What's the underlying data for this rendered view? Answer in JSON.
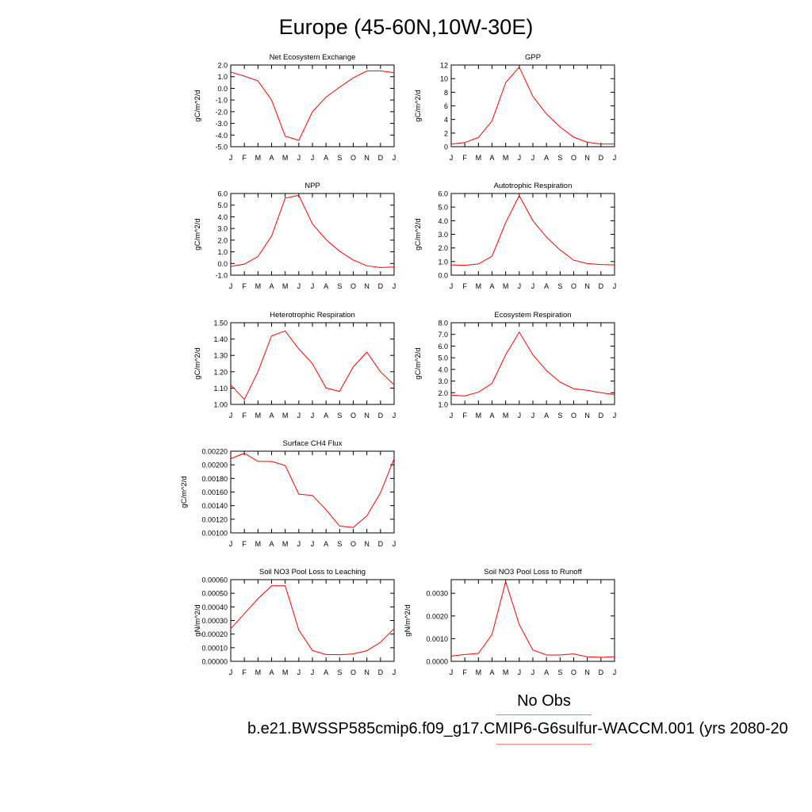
{
  "title": "Europe (45-60N,10W-30E)",
  "legend": {
    "obs_label": "No Obs",
    "case_label": "b.e21.BWSSP585cmip6.f09_g17.CMIP6-G6sulfur-WACCM.001 (yrs 2080-20",
    "obs_color": "#8c8cff",
    "case_color": "#ff0000"
  },
  "chart_data": [
    {
      "type": "line",
      "title": "Net Ecosystem Exchange",
      "ylabel": "gC/m^2/d",
      "categories": [
        "J",
        "F",
        "M",
        "A",
        "M",
        "J",
        "J",
        "A",
        "S",
        "O",
        "N",
        "D",
        "J"
      ],
      "values": [
        1.4,
        1.05,
        0.65,
        -1.0,
        -4.1,
        -4.45,
        -2.0,
        -0.75,
        0.1,
        0.9,
        1.5,
        1.5,
        1.35
      ],
      "ylim": [
        -5.0,
        2.0
      ],
      "yticks": [
        "2.0",
        "1.0",
        "0.0",
        "-1.0",
        "-2.0",
        "-3.0",
        "-4.0",
        "-5.0"
      ],
      "color": "#ff0000"
    },
    {
      "type": "line",
      "title": "GPP",
      "ylabel": "gC/m^2/d",
      "categories": [
        "J",
        "F",
        "M",
        "A",
        "M",
        "J",
        "J",
        "A",
        "S",
        "O",
        "N",
        "D",
        "J"
      ],
      "values": [
        0.4,
        0.6,
        1.35,
        3.8,
        9.4,
        11.7,
        7.4,
        4.8,
        2.9,
        1.4,
        0.65,
        0.4,
        0.4
      ],
      "ylim": [
        0,
        12
      ],
      "yticks": [
        "12",
        "10",
        "8",
        "6",
        "4",
        "2",
        "0"
      ],
      "color": "#ff0000"
    },
    {
      "type": "line",
      "title": "NPP",
      "ylabel": "gC/m^2/d",
      "categories": [
        "J",
        "F",
        "M",
        "A",
        "M",
        "J",
        "J",
        "A",
        "S",
        "O",
        "N",
        "D",
        "J"
      ],
      "values": [
        -0.25,
        -0.05,
        0.6,
        2.35,
        5.6,
        5.85,
        3.4,
        2.05,
        1.05,
        0.3,
        -0.2,
        -0.35,
        -0.3
      ],
      "ylim": [
        -1.0,
        6.0
      ],
      "yticks": [
        "6.0",
        "5.0",
        "4.0",
        "3.0",
        "2.0",
        "1.0",
        "0.0",
        "-1.0"
      ],
      "color": "#ff0000"
    },
    {
      "type": "line",
      "title": "Autotrophic Respiration",
      "ylabel": "gC/m^2/d",
      "categories": [
        "J",
        "F",
        "M",
        "A",
        "M",
        "J",
        "J",
        "A",
        "S",
        "O",
        "N",
        "D",
        "J"
      ],
      "values": [
        0.75,
        0.72,
        0.82,
        1.4,
        3.85,
        5.85,
        4.0,
        2.8,
        1.85,
        1.1,
        0.85,
        0.78,
        0.75
      ],
      "ylim": [
        0.0,
        6.0
      ],
      "yticks": [
        "6.0",
        "5.0",
        "4.0",
        "3.0",
        "2.0",
        "1.0",
        "0.0"
      ],
      "color": "#ff0000"
    },
    {
      "type": "line",
      "title": "Heterotrophic Respiration",
      "ylabel": "gC/m^2/d",
      "categories": [
        "J",
        "F",
        "M",
        "A",
        "M",
        "J",
        "J",
        "A",
        "S",
        "O",
        "N",
        "D",
        "J"
      ],
      "values": [
        1.12,
        1.03,
        1.2,
        1.42,
        1.45,
        1.34,
        1.25,
        1.1,
        1.08,
        1.23,
        1.32,
        1.2,
        1.12
      ],
      "ylim": [
        1.0,
        1.5
      ],
      "yticks": [
        "1.50",
        "1.40",
        "1.30",
        "1.20",
        "1.10",
        "1.00"
      ],
      "color": "#ff0000"
    },
    {
      "type": "line",
      "title": "Ecosystem Respiration",
      "ylabel": "gC/m^2/d",
      "categories": [
        "J",
        "F",
        "M",
        "A",
        "M",
        "J",
        "J",
        "A",
        "S",
        "O",
        "N",
        "D",
        "J"
      ],
      "values": [
        1.8,
        1.72,
        2.05,
        2.8,
        5.25,
        7.2,
        5.25,
        3.9,
        2.9,
        2.35,
        2.2,
        2.0,
        1.85
      ],
      "ylim": [
        1.0,
        8.0
      ],
      "yticks": [
        "8.0",
        "7.0",
        "6.0",
        "5.0",
        "4.0",
        "3.0",
        "2.0",
        "1.0"
      ],
      "color": "#ff0000"
    },
    {
      "type": "line",
      "title": "Surface CH4 Flux",
      "ylabel": "gC/m^2/d",
      "categories": [
        "J",
        "F",
        "M",
        "A",
        "M",
        "J",
        "J",
        "A",
        "S",
        "O",
        "N",
        "D",
        "J"
      ],
      "values": [
        0.00209,
        0.00217,
        0.00205,
        0.00205,
        0.00199,
        0.00157,
        0.00155,
        0.00134,
        0.0011,
        0.00108,
        0.00125,
        0.00159,
        0.00209
      ],
      "ylim": [
        0.001,
        0.0022
      ],
      "yticks": [
        "0.00220",
        "0.00200",
        "0.00180",
        "0.00160",
        "0.00140",
        "0.00120",
        "0.00100"
      ],
      "color": "#ff0000"
    },
    {
      "type": "line",
      "title": "Soil NO3 Pool Loss to Leaching",
      "ylabel": "gN/m^2/d",
      "categories": [
        "J",
        "F",
        "M",
        "A",
        "M",
        "J",
        "J",
        "A",
        "S",
        "O",
        "N",
        "D",
        "J"
      ],
      "values": [
        0.00024,
        0.00035,
        0.00046,
        0.000555,
        0.000555,
        0.00023,
        8e-05,
        5e-05,
        4.8e-05,
        5.5e-05,
        7.8e-05,
        0.00014,
        0.00024
      ],
      "ylim": [
        0.0,
        0.0006
      ],
      "yticks": [
        "0.00060",
        "0.00050",
        "0.00040",
        "0.00030",
        "0.00020",
        "0.00010",
        "0.00000"
      ],
      "color": "#ff0000"
    },
    {
      "type": "line",
      "title": "Soil NO3 Pool Loss to Runoff",
      "ylabel": "gN/m^2/d",
      "categories": [
        "J",
        "F",
        "M",
        "A",
        "M",
        "J",
        "J",
        "A",
        "S",
        "O",
        "N",
        "D",
        "J"
      ],
      "values": [
        0.00023,
        0.0003,
        0.00035,
        0.00118,
        0.00352,
        0.00162,
        0.0005,
        0.00028,
        0.00028,
        0.00033,
        0.0002,
        0.00018,
        0.0002
      ],
      "ylim": [
        0.0,
        0.0036
      ],
      "yticks": [
        "0.0030",
        "0.0020",
        "0.0010",
        "0.0000"
      ],
      "ytick_values": [
        0.003,
        0.002,
        0.001,
        0.0
      ],
      "color": "#ff0000"
    }
  ]
}
